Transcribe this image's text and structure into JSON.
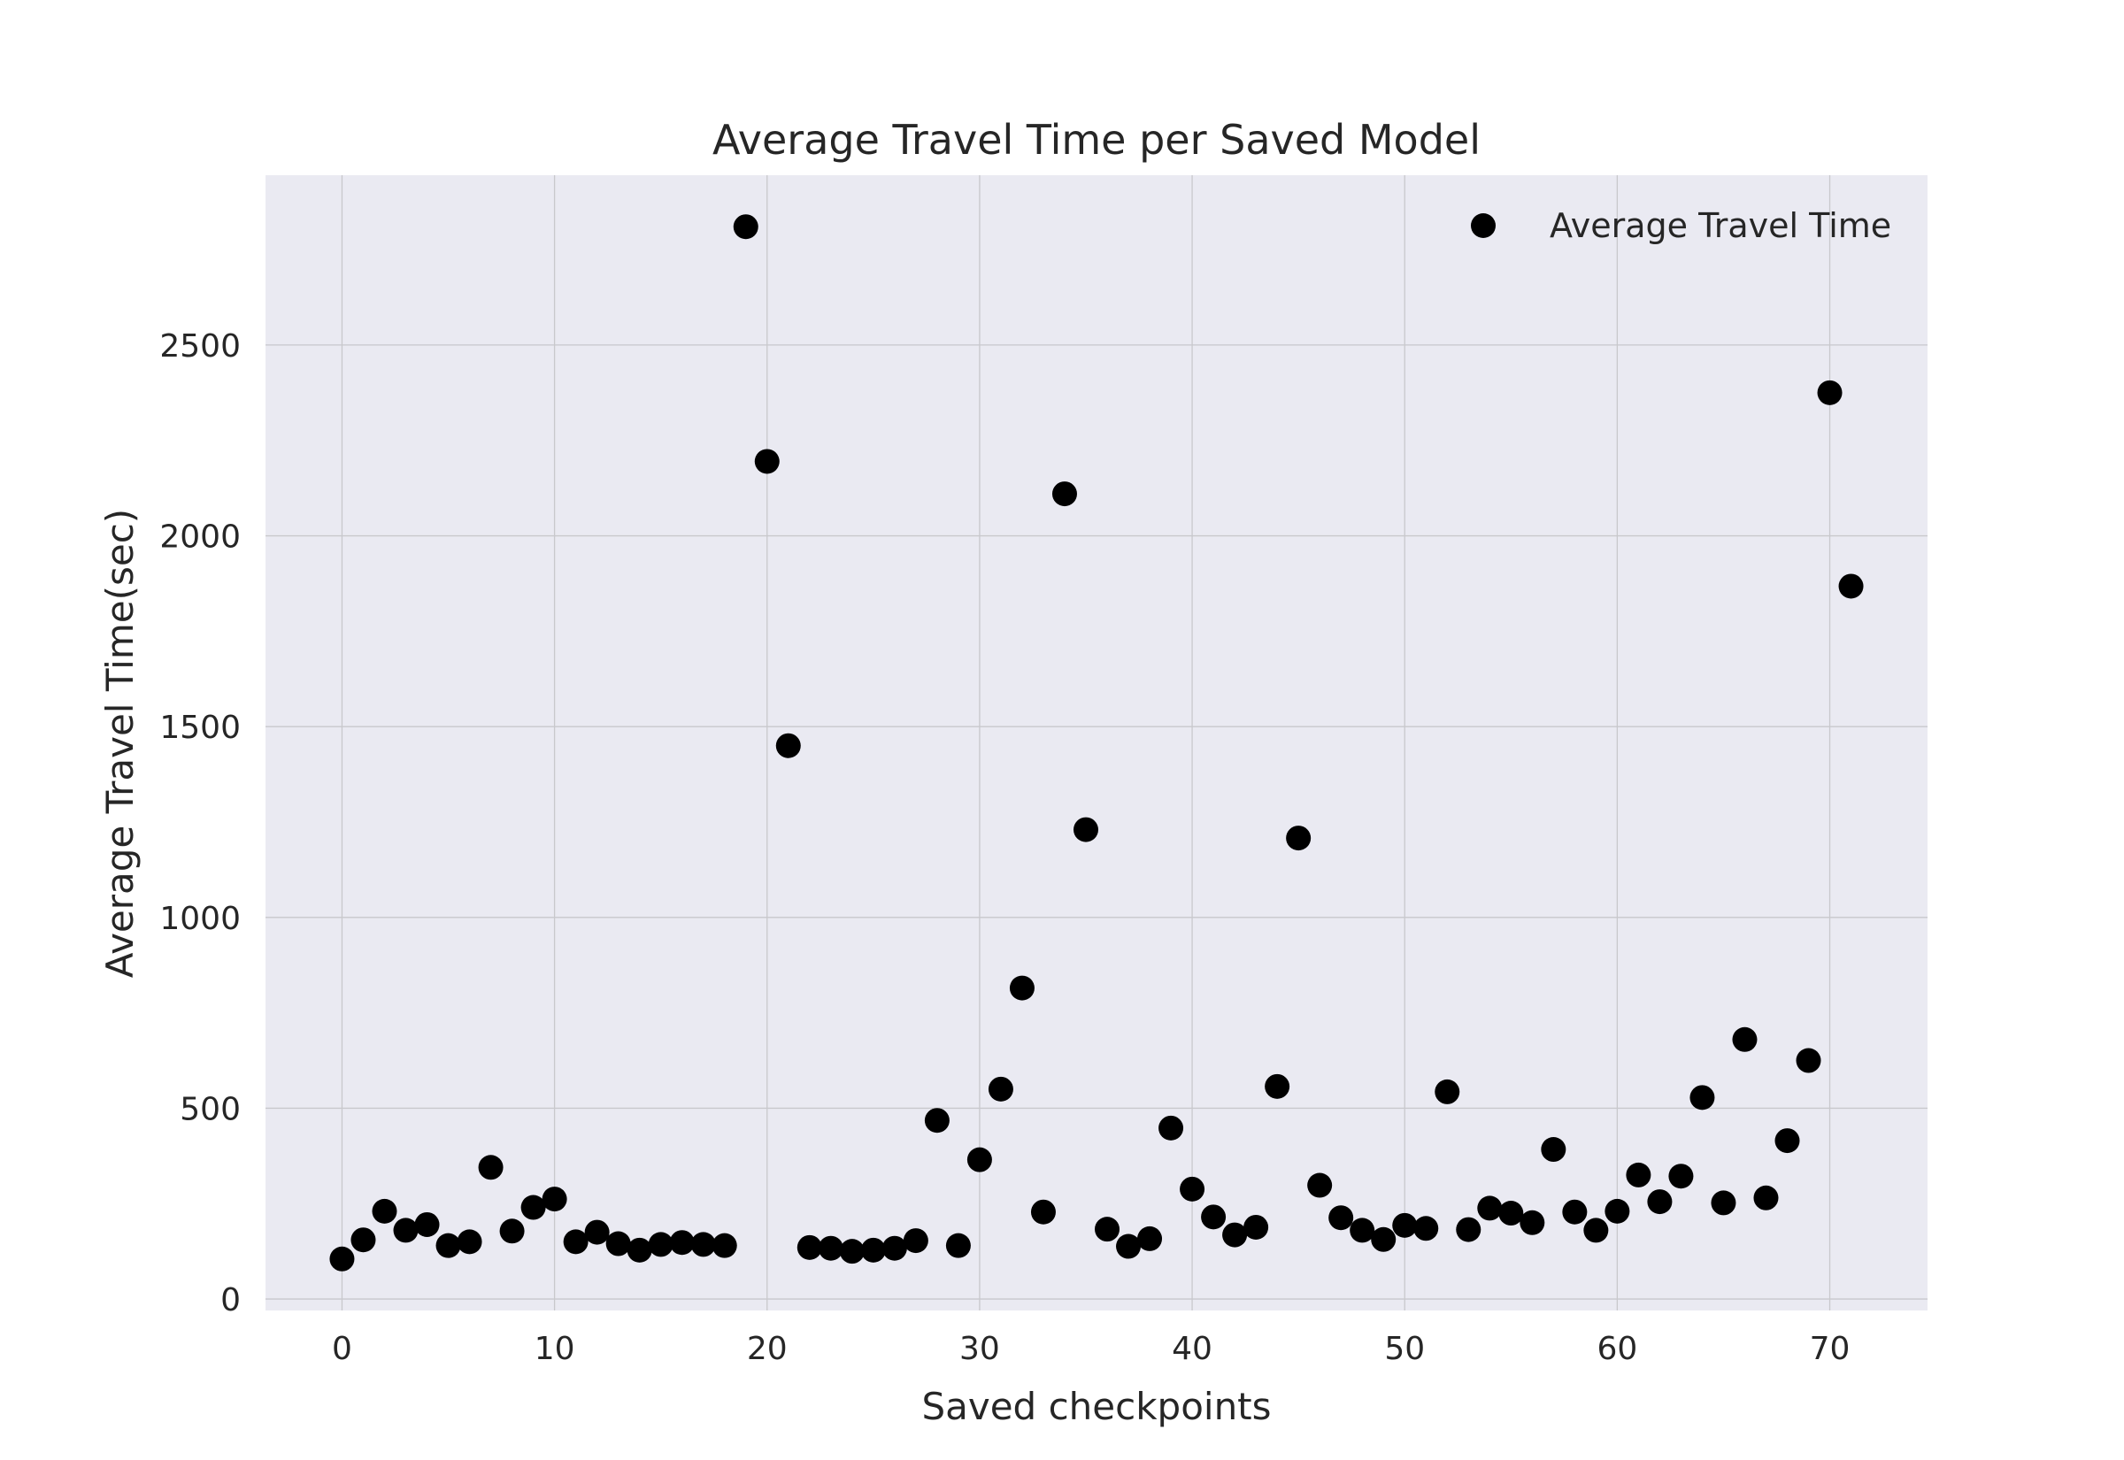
{
  "chart_data": {
    "type": "scatter",
    "title": "Average Travel Time per Saved Model",
    "xlabel": "Saved checkpoints",
    "ylabel": "Average Travel Time(sec)",
    "xlim": [
      -3.6,
      74.6
    ],
    "ylim": [
      -30,
      2945
    ],
    "xticks": [
      0,
      10,
      20,
      30,
      40,
      50,
      60,
      70
    ],
    "yticks": [
      0,
      500,
      1000,
      1500,
      2000,
      2500
    ],
    "grid": true,
    "legend": "top-right",
    "marker_color": "#000000",
    "series": [
      {
        "name": "Average Travel Time",
        "x": [
          0,
          1,
          2,
          3,
          4,
          5,
          6,
          7,
          8,
          9,
          10,
          11,
          12,
          13,
          14,
          15,
          16,
          17,
          18,
          19,
          20,
          21,
          22,
          23,
          24,
          25,
          26,
          27,
          28,
          29,
          30,
          31,
          32,
          33,
          34,
          35,
          36,
          37,
          38,
          39,
          40,
          41,
          42,
          43,
          44,
          45,
          46,
          47,
          48,
          49,
          50,
          51,
          52,
          53,
          54,
          55,
          56,
          57,
          58,
          59,
          60,
          61,
          62,
          63,
          64,
          65,
          66,
          67,
          68,
          69,
          70,
          71
        ],
        "y": [
          105,
          155,
          230,
          180,
          195,
          140,
          150,
          345,
          178,
          240,
          262,
          150,
          175,
          145,
          128,
          143,
          148,
          143,
          140,
          2810,
          2195,
          1450,
          135,
          133,
          125,
          128,
          133,
          153,
          468,
          140,
          365,
          550,
          815,
          228,
          2110,
          1230,
          183,
          138,
          158,
          448,
          288,
          215,
          168,
          188,
          557,
          1208,
          298,
          213,
          180,
          156,
          193,
          185,
          543,
          182,
          238,
          225,
          200,
          392,
          228,
          180,
          230,
          325,
          255,
          322,
          528,
          252,
          680,
          265,
          415,
          625,
          2375,
          1868
        ]
      }
    ]
  }
}
